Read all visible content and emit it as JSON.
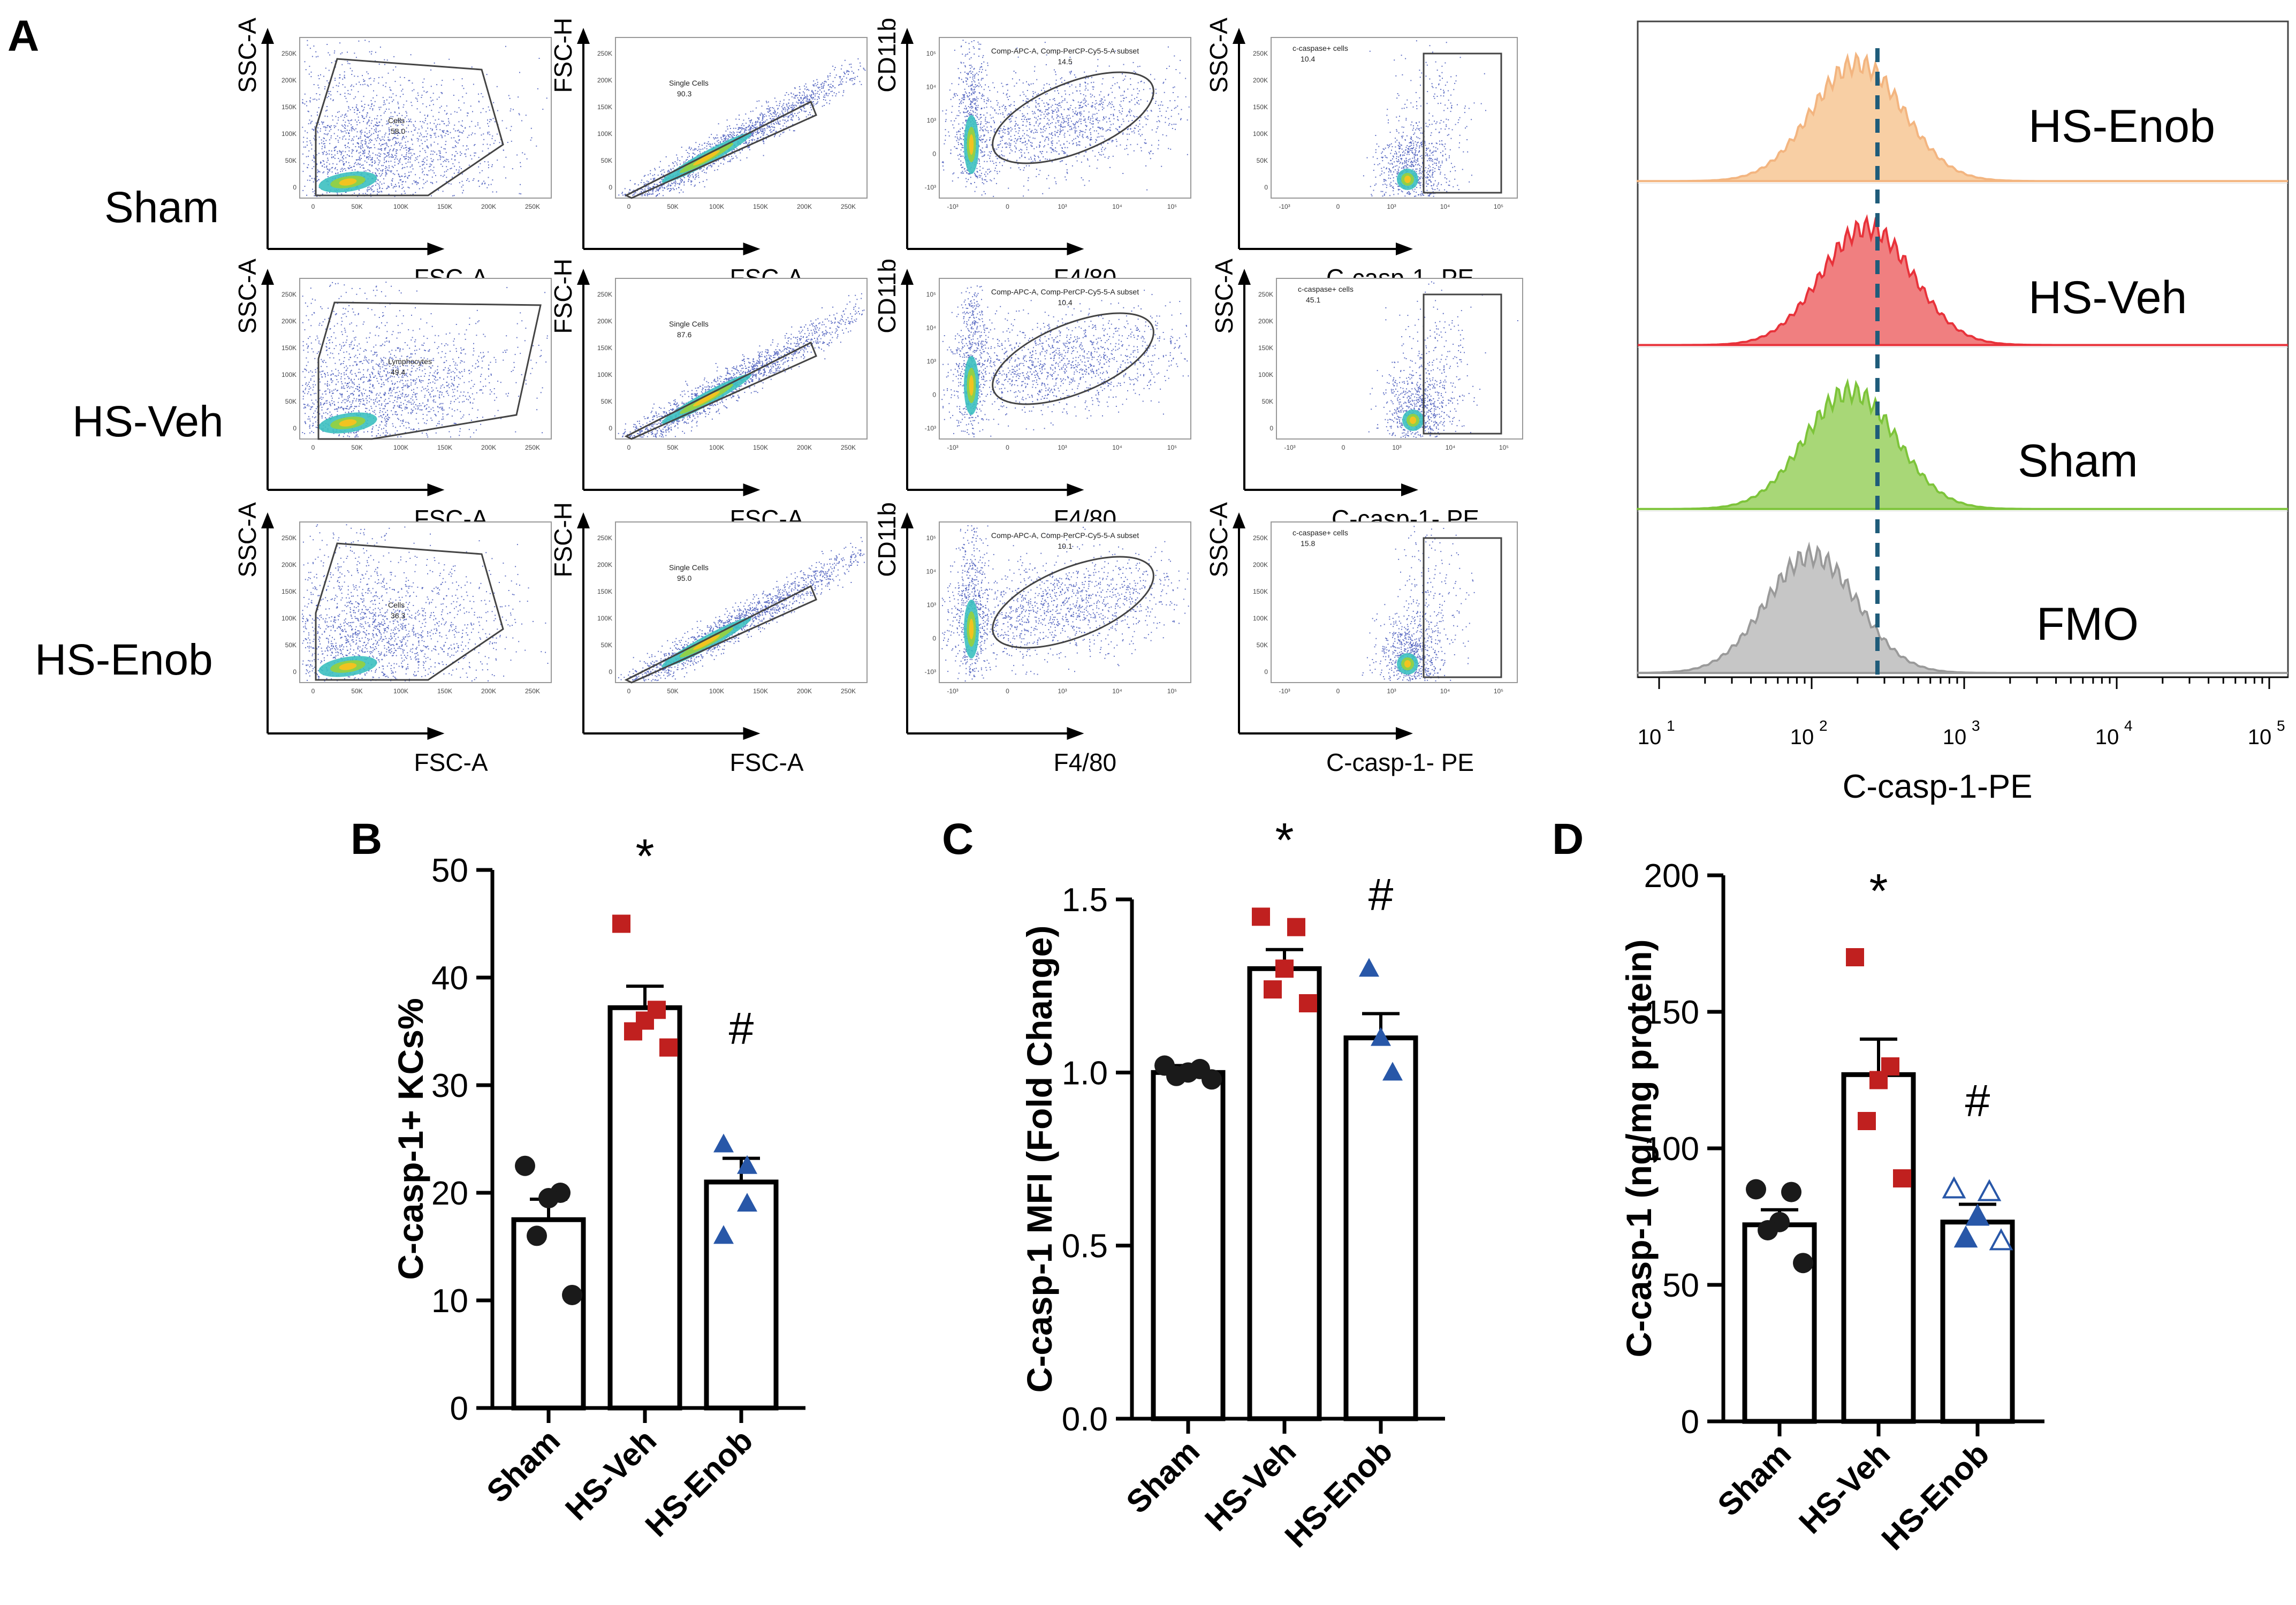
{
  "figure": {
    "panel_labels": {
      "a": "A",
      "b": "B",
      "c": "C",
      "d": "D"
    },
    "colors": {
      "sham": "#1a1a1a",
      "hs_veh": "#c0201f",
      "hs_enob": "#2857a8",
      "hist_hs_enob": "#f8cfa4",
      "hist_hs_veh": "#f07f80",
      "hist_sham": "#a8d777",
      "hist_fmo": "#c6c6c6",
      "dash": "#1f5c7a"
    }
  },
  "flow": {
    "rows": [
      {
        "label": "Sham",
        "p1": {
          "y": "SSC-A",
          "x": "FSC-A",
          "gate_name": "Cells",
          "gate_value": "58.0"
        },
        "p2": {
          "y": "FSC-H",
          "x": "FSC-A",
          "gate_name": "Single Cells",
          "gate_value": "90.3"
        },
        "p3": {
          "y": "CD11b",
          "x": "F4/80",
          "gate_name": "Comp-APC-A, Comp-PerCP-Cy5-5-A subset",
          "gate_value": "14.5"
        },
        "p4": {
          "y": "SSC-A",
          "x": "C-casp-1- PE",
          "gate_name": "c-caspase+ cells",
          "gate_value": "10.4"
        }
      },
      {
        "label": "HS-Veh",
        "p1": {
          "y": "SSC-A",
          "x": "FSC-A",
          "gate_name": "Lymphocytes",
          "gate_value": "49.4"
        },
        "p2": {
          "y": "FSC-H",
          "x": "FSC-A",
          "gate_name": "Single Cells",
          "gate_value": "87.6"
        },
        "p3": {
          "y": "CD11b",
          "x": "F4/80",
          "gate_name": "Comp-APC-A, Comp-PerCP-Cy5-5-A subset",
          "gate_value": "10.4"
        },
        "p4": {
          "y": "SSC-A",
          "x": "C-casp-1- PE",
          "gate_name": "c-caspase+ cells",
          "gate_value": "45.1"
        }
      },
      {
        "label": "HS-Enob",
        "p1": {
          "y": "SSC-A",
          "x": "FSC-A",
          "gate_name": "Cells",
          "gate_value": "36.3"
        },
        "p2": {
          "y": "FSC-H",
          "x": "FSC-A",
          "gate_name": "Single Cells",
          "gate_value": "95.0"
        },
        "p3": {
          "y": "CD11b",
          "x": "F4/80",
          "gate_name": "Comp-APC-A, Comp-PerCP-Cy5-5-A subset",
          "gate_value": "10.1"
        },
        "p4": {
          "y": "SSC-A",
          "x": "C-casp-1- PE",
          "gate_name": "c-caspase+ cells",
          "gate_value": "15.8"
        }
      }
    ],
    "lin_ticks": [
      "0",
      "50K",
      "100K",
      "150K",
      "200K",
      "250K"
    ],
    "log_ticks": [
      "-10³",
      "0",
      "10³",
      "10⁴",
      "10⁵"
    ]
  },
  "chart_data": [
    {
      "type": "histogram-overlay",
      "title": "",
      "xlabel": "C-casp-1-PE",
      "xscale": "log",
      "xlim": [
        10,
        100000
      ],
      "x_tick_labels": [
        "10",
        "1",
        "10",
        "2",
        "10",
        "3",
        "10",
        "4",
        "10",
        "5"
      ],
      "x_tick_values": [
        10,
        100,
        1000,
        10000,
        100000
      ],
      "threshold_x": 270,
      "series": [
        {
          "name": "HS-Enob",
          "peak_x": 200,
          "color": "#f8cfa4"
        },
        {
          "name": "HS-Veh",
          "peak_x": 230,
          "color": "#f07f80"
        },
        {
          "name": "Sham",
          "peak_x": 180,
          "color": "#a8d777"
        },
        {
          "name": "FMO",
          "peak_x": 100,
          "color": "#c6c6c6"
        }
      ]
    },
    {
      "type": "bar",
      "panel": "B",
      "ylabel": "C-casp-1+ KCs%",
      "ylim": [
        0,
        50
      ],
      "yticks": [
        0,
        10,
        20,
        30,
        40,
        50
      ],
      "categories": [
        "Sham",
        "HS-Veh",
        "HS-Enob"
      ],
      "values": [
        17.5,
        37.2,
        21.0
      ],
      "sem": [
        1.9,
        2.0,
        2.2
      ],
      "points": [
        [
          22.5,
          20,
          19.5,
          16,
          10.5
        ],
        [
          45,
          37,
          36,
          35,
          33.5
        ],
        [
          24.5,
          22.5,
          19,
          16
        ]
      ],
      "markers": [
        "circle",
        "square",
        "triangle"
      ],
      "annotations": [
        "",
        "*",
        "#"
      ]
    },
    {
      "type": "bar",
      "panel": "C",
      "ylabel": "C-casp-1 MFI (Fold Change)",
      "ylim": [
        0,
        1.5
      ],
      "yticks": [
        0,
        0.5,
        1.0,
        1.5
      ],
      "ytick_labels": [
        "0.0",
        "0.5",
        "1.0",
        "1.5"
      ],
      "categories": [
        "Sham",
        "HS-Veh",
        "HS-Enob"
      ],
      "values": [
        1.0,
        1.3,
        1.1
      ],
      "sem": [
        0.02,
        0.055,
        0.07
      ],
      "points": [
        [
          1.02,
          1.01,
          1.0,
          0.99,
          0.98
        ],
        [
          1.45,
          1.42,
          1.3,
          1.24,
          1.2
        ],
        [
          1.3,
          1.1,
          1.0
        ]
      ],
      "markers": [
        "circle",
        "square",
        "triangle"
      ],
      "annotations": [
        "",
        "*",
        "#"
      ]
    },
    {
      "type": "bar",
      "panel": "D",
      "ylabel": "C-casp-1 (ng/mg protein)",
      "ylim": [
        0,
        200
      ],
      "yticks": [
        0,
        50,
        100,
        150,
        200
      ],
      "categories": [
        "Sham",
        "HS-Veh",
        "HS-Enob"
      ],
      "values": [
        72,
        127,
        73
      ],
      "sem": [
        5.5,
        13,
        6.5
      ],
      "points": [
        [
          85,
          84,
          73,
          70,
          58
        ],
        [
          170,
          130,
          125,
          110,
          89
        ],
        [
          85,
          84,
          75,
          67,
          66
        ]
      ],
      "markers": [
        "circle",
        "square",
        "triangle-mixed"
      ],
      "annotations": [
        "",
        "*",
        "#"
      ]
    }
  ]
}
